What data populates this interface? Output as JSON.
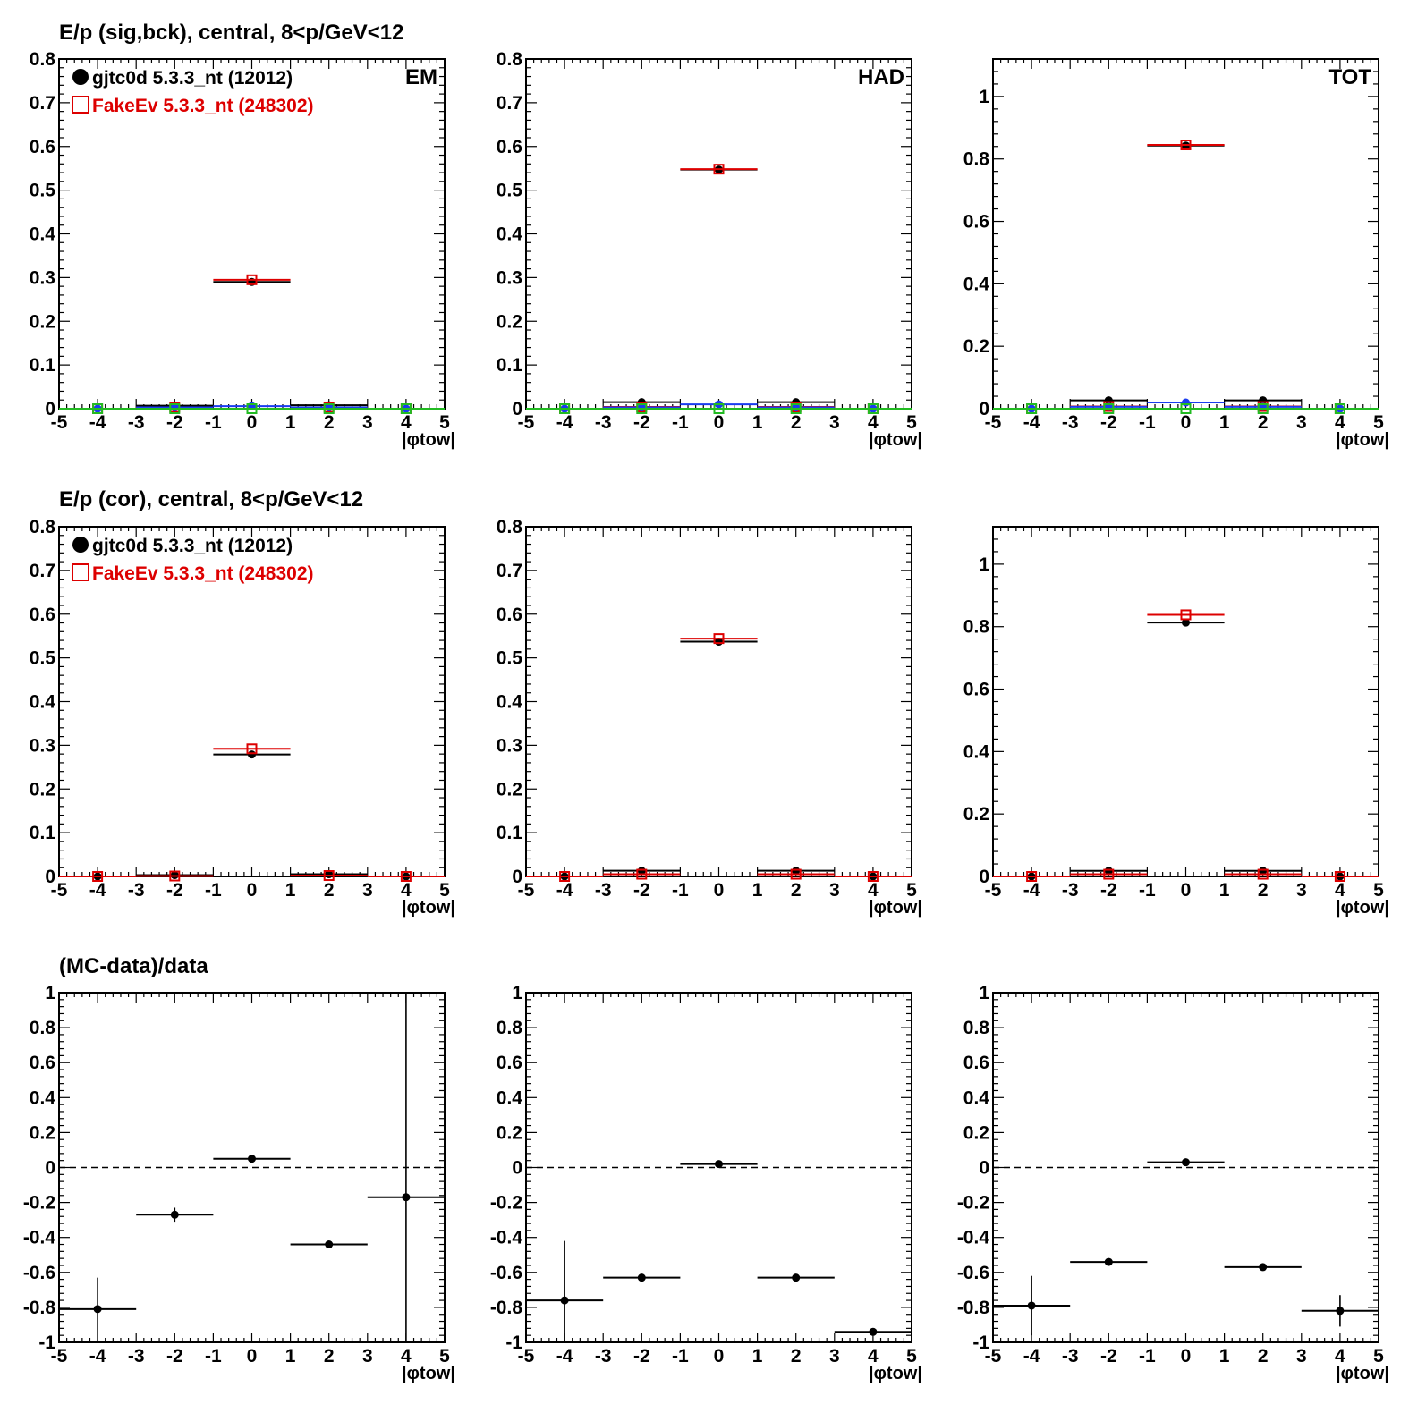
{
  "figure": {
    "row_titles": [
      "E/p (sig,bck), central,  8<p/GeV<12",
      "E/p (cor), central,  8<p/GeV<12",
      "(MC-data)/data"
    ]
  },
  "legend": {
    "entries": [
      {
        "label": "gjtc0d 5.3.3_nt (12012)",
        "color": "#000000",
        "marker": "filled-circle"
      },
      {
        "label": "FakeEv 5.3.3_nt (248302)",
        "color": "#dd0000",
        "marker": "open-square"
      }
    ]
  },
  "chart_data": [
    {
      "type": "scatter",
      "id": "sigbck-em",
      "row": 0,
      "col": 0,
      "corner_label": "EM",
      "xlabel": "|φtow|",
      "xlim": [
        -5,
        5
      ],
      "ylim": [
        0,
        0.8
      ],
      "yticks": [
        0,
        0.1,
        0.2,
        0.3,
        0.4,
        0.5,
        0.6,
        0.7,
        0.8
      ],
      "show_legend": true,
      "x": [
        -4,
        -2,
        0,
        2,
        4
      ],
      "series": [
        {
          "name": "gjtc0d 5.3.3_nt (12012)",
          "color": "#000000",
          "marker": "filled-circle",
          "values": [
            0,
            0.007,
            0.29,
            0.008,
            0
          ]
        },
        {
          "name": "FakeEv 5.3.3_nt (248302)",
          "color": "#dd0000",
          "marker": "open-square",
          "values": [
            0,
            0.003,
            0.295,
            0.003,
            0
          ]
        },
        {
          "color": "#1a3cf0",
          "marker": "filled-circle",
          "values": [
            0,
            0.003,
            0.006,
            0.003,
            0
          ]
        },
        {
          "color": "#22bb22",
          "marker": "open-square",
          "values": [
            0,
            0,
            0,
            0,
            0
          ]
        }
      ]
    },
    {
      "type": "scatter",
      "id": "sigbck-had",
      "row": 0,
      "col": 1,
      "corner_label": "HAD",
      "xlabel": "|φtow|",
      "xlim": [
        -5,
        5
      ],
      "ylim": [
        0,
        0.8
      ],
      "yticks": [
        0,
        0.1,
        0.2,
        0.3,
        0.4,
        0.5,
        0.6,
        0.7,
        0.8
      ],
      "x": [
        -4,
        -2,
        0,
        2,
        4
      ],
      "series": [
        {
          "color": "#000000",
          "marker": "filled-circle",
          "values": [
            0,
            0.015,
            0.547,
            0.015,
            0
          ]
        },
        {
          "color": "#dd0000",
          "marker": "open-square",
          "values": [
            0,
            0.004,
            0.548,
            0.004,
            0
          ]
        },
        {
          "color": "#1a3cf0",
          "marker": "filled-circle",
          "values": [
            0,
            0.003,
            0.01,
            0.003,
            0
          ]
        },
        {
          "color": "#22bb22",
          "marker": "open-square",
          "values": [
            0,
            0,
            0,
            0,
            0
          ]
        }
      ]
    },
    {
      "type": "scatter",
      "id": "sigbck-tot",
      "row": 0,
      "col": 2,
      "corner_label": "TOT",
      "xlabel": "|φtow|",
      "xlim": [
        -5,
        5
      ],
      "ylim": [
        0,
        1.12
      ],
      "yticks": [
        0,
        0.2,
        0.4,
        0.6,
        0.8,
        1
      ],
      "x": [
        -4,
        -2,
        0,
        2,
        4
      ],
      "series": [
        {
          "color": "#000000",
          "marker": "filled-circle",
          "values": [
            0,
            0.027,
            0.843,
            0.027,
            0
          ]
        },
        {
          "color": "#dd0000",
          "marker": "open-square",
          "values": [
            0,
            0.007,
            0.845,
            0.007,
            0
          ]
        },
        {
          "color": "#1a3cf0",
          "marker": "filled-circle",
          "values": [
            0,
            0.006,
            0.02,
            0.006,
            0
          ]
        },
        {
          "color": "#22bb22",
          "marker": "open-square",
          "values": [
            0,
            0,
            0,
            0,
            0
          ]
        }
      ]
    },
    {
      "type": "scatter",
      "id": "cor-em",
      "row": 1,
      "col": 0,
      "xlabel": "|φtow|",
      "xlim": [
        -5,
        5
      ],
      "ylim": [
        0,
        0.8
      ],
      "yticks": [
        0,
        0.1,
        0.2,
        0.3,
        0.4,
        0.5,
        0.6,
        0.7,
        0.8
      ],
      "show_legend": true,
      "x": [
        -4,
        -2,
        0,
        2,
        4
      ],
      "series": [
        {
          "name": "gjtc0d 5.3.3_nt (12012)",
          "color": "#000000",
          "marker": "filled-circle",
          "values": [
            0,
            0.003,
            0.279,
            0.005,
            0
          ]
        },
        {
          "name": "FakeEv 5.3.3_nt (248302)",
          "color": "#dd0000",
          "marker": "open-square",
          "values": [
            0,
            0.001,
            0.292,
            0.002,
            0
          ]
        }
      ]
    },
    {
      "type": "scatter",
      "id": "cor-had",
      "row": 1,
      "col": 1,
      "xlabel": "|φtow|",
      "xlim": [
        -5,
        5
      ],
      "ylim": [
        0,
        0.8
      ],
      "yticks": [
        0,
        0.1,
        0.2,
        0.3,
        0.4,
        0.5,
        0.6,
        0.7,
        0.8
      ],
      "x": [
        -4,
        -2,
        0,
        2,
        4
      ],
      "series": [
        {
          "color": "#000000",
          "marker": "filled-circle",
          "values": [
            0,
            0.013,
            0.537,
            0.013,
            0
          ]
        },
        {
          "color": "#dd0000",
          "marker": "open-square",
          "values": [
            0,
            0.005,
            0.544,
            0.005,
            0
          ]
        }
      ]
    },
    {
      "type": "scatter",
      "id": "cor-tot",
      "row": 1,
      "col": 2,
      "xlabel": "|φtow|",
      "xlim": [
        -5,
        5
      ],
      "ylim": [
        0,
        1.12
      ],
      "yticks": [
        0,
        0.2,
        0.4,
        0.6,
        0.8,
        1
      ],
      "x": [
        -4,
        -2,
        0,
        2,
        4
      ],
      "series": [
        {
          "color": "#000000",
          "marker": "filled-circle",
          "values": [
            0,
            0.018,
            0.813,
            0.018,
            0
          ]
        },
        {
          "color": "#dd0000",
          "marker": "open-square",
          "values": [
            0,
            0.007,
            0.838,
            0.007,
            0
          ]
        }
      ]
    },
    {
      "type": "scatter",
      "id": "ratio-em",
      "row": 2,
      "col": 0,
      "xlabel": "|φtow|",
      "xlim": [
        -5,
        5
      ],
      "ylim": [
        -1,
        1
      ],
      "yticks": [
        -1,
        -0.8,
        -0.6,
        -0.4,
        -0.2,
        0,
        0.2,
        0.4,
        0.6,
        0.8,
        1
      ],
      "reference_line": 0,
      "x": [
        -4,
        -2,
        0,
        2,
        4
      ],
      "series": [
        {
          "color": "#000000",
          "marker": "filled-circle",
          "values": [
            -0.81,
            -0.27,
            0.05,
            -0.44,
            -0.17
          ],
          "errors": [
            0.18,
            0.04,
            0.01,
            0.01,
            1.3
          ]
        }
      ]
    },
    {
      "type": "scatter",
      "id": "ratio-had",
      "row": 2,
      "col": 1,
      "xlabel": "|φtow|",
      "xlim": [
        -5,
        5
      ],
      "ylim": [
        -1,
        1
      ],
      "yticks": [
        -1,
        -0.8,
        -0.6,
        -0.4,
        -0.2,
        0,
        0.2,
        0.4,
        0.6,
        0.8,
        1
      ],
      "reference_line": 0,
      "x": [
        -4,
        -2,
        0,
        2,
        4
      ],
      "series": [
        {
          "color": "#000000",
          "marker": "filled-circle",
          "values": [
            -0.76,
            -0.63,
            0.02,
            -0.63,
            -0.94
          ],
          "errors": [
            0.34,
            0.01,
            0.01,
            0.01,
            0.01
          ]
        }
      ]
    },
    {
      "type": "scatter",
      "id": "ratio-tot",
      "row": 2,
      "col": 2,
      "xlabel": "|φtow|",
      "xlim": [
        -5,
        5
      ],
      "ylim": [
        -1,
        1
      ],
      "yticks": [
        -1,
        -0.8,
        -0.6,
        -0.4,
        -0.2,
        0,
        0.2,
        0.4,
        0.6,
        0.8,
        1
      ],
      "reference_line": 0,
      "x": [
        -4,
        -2,
        0,
        2,
        4
      ],
      "series": [
        {
          "color": "#000000",
          "marker": "filled-circle",
          "values": [
            -0.79,
            -0.54,
            0.03,
            -0.57,
            -0.82
          ],
          "errors": [
            0.17,
            0.01,
            0.01,
            0.01,
            0.09
          ]
        }
      ]
    }
  ]
}
